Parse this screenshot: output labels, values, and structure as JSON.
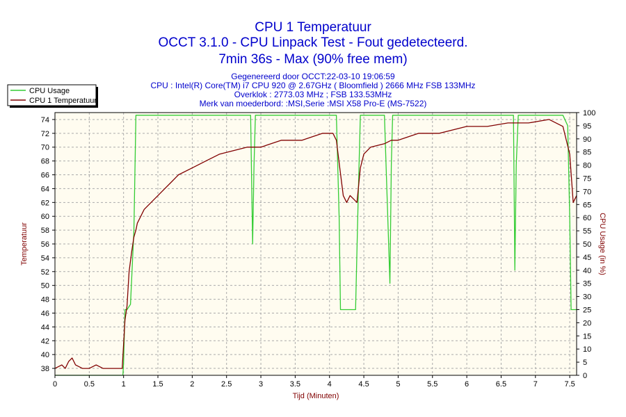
{
  "chart_data": {
    "type": "line",
    "title": [
      "CPU 1 Temperatuur",
      "OCCT 3.1.0 - CPU Linpack Test - Fout gedetecteerd.",
      "7min 36s - Max (90% free mem)"
    ],
    "subtitle": [
      "Gegenereerd door OCCT:22-03-10 19:06:59",
      "CPU : Intel(R) Core(TM) i7 CPU 920 @ 2.67GHz ( Bloomfield ) 2666 MHz FSB 133MHz",
      "Overklok : 2773.03 MHz ; FSB 133.53MHz",
      "Merk van moederbord: :MSI,Serie :MSI X58 Pro-E (MS-7522)"
    ],
    "xlabel": "Tijd (Minuten)",
    "ylabel_left": "Temperatuur",
    "ylabel_right": "CPU Usage (in %)",
    "xlim": [
      0,
      7.6
    ],
    "ylim_left": [
      37,
      75
    ],
    "ylim_right": [
      0,
      100
    ],
    "x_ticks": [
      "0",
      "0.5",
      "1",
      "1.5",
      "2",
      "2.5",
      "3",
      "3.5",
      "4",
      "4.5",
      "5",
      "5.5",
      "6",
      "6.5",
      "7",
      "7.5"
    ],
    "y_ticks_left": [
      "38",
      "40",
      "42",
      "44",
      "46",
      "48",
      "50",
      "52",
      "54",
      "56",
      "58",
      "60",
      "62",
      "64",
      "66",
      "68",
      "70",
      "72",
      "74"
    ],
    "y_ticks_right": [
      "0",
      "5",
      "10",
      "15",
      "20",
      "25",
      "30",
      "35",
      "40",
      "45",
      "50",
      "55",
      "60",
      "65",
      "70",
      "75",
      "80",
      "85",
      "90",
      "95",
      "100"
    ],
    "grid": true,
    "legend_position": "top-left",
    "series": [
      {
        "name": "CPU Usage",
        "axis": "right",
        "color": "#33cc33",
        "x": [
          0,
          0.99,
          1.0,
          1.02,
          1.05,
          1.1,
          1.15,
          1.18,
          1.5,
          2.0,
          2.5,
          2.85,
          2.88,
          2.9,
          2.92,
          2.95,
          3.5,
          4.0,
          4.1,
          4.14,
          4.16,
          4.2,
          4.3,
          4.38,
          4.42,
          4.45,
          4.5,
          4.8,
          4.88,
          4.9,
          4.92,
          4.95,
          5.5,
          6.0,
          6.5,
          6.68,
          6.7,
          6.72,
          6.75,
          7.0,
          7.4,
          7.47,
          7.5,
          7.52,
          7.6
        ],
        "y": [
          0,
          0,
          5,
          25,
          25,
          27,
          55,
          99,
          99,
          99,
          99,
          99,
          50,
          80,
          99,
          99,
          99,
          99,
          99,
          60,
          25,
          25,
          25,
          25,
          70,
          99,
          99,
          99,
          35,
          80,
          99,
          99,
          99,
          99,
          99,
          99,
          40,
          80,
          99,
          99,
          99,
          95,
          60,
          25,
          25
        ]
      },
      {
        "name": "CPU 1 Temperatuur",
        "axis": "left",
        "color": "#800000",
        "x": [
          0,
          0.1,
          0.15,
          0.2,
          0.25,
          0.3,
          0.4,
          0.5,
          0.6,
          0.7,
          0.8,
          0.9,
          0.98,
          1.02,
          1.05,
          1.08,
          1.12,
          1.15,
          1.18,
          1.2,
          1.25,
          1.3,
          1.4,
          1.5,
          1.6,
          1.7,
          1.8,
          2.0,
          2.2,
          2.4,
          2.6,
          2.8,
          3.0,
          3.3,
          3.6,
          3.9,
          4.05,
          4.1,
          4.15,
          4.2,
          4.25,
          4.3,
          4.35,
          4.4,
          4.45,
          4.5,
          4.6,
          4.8,
          4.9,
          5.0,
          5.3,
          5.6,
          6.0,
          6.3,
          6.6,
          6.9,
          7.2,
          7.4,
          7.5,
          7.55,
          7.6
        ],
        "y": [
          38,
          38.5,
          38,
          39,
          39.5,
          38.5,
          38,
          38,
          38.5,
          38,
          38,
          38,
          38,
          45,
          47,
          52,
          55,
          57,
          58,
          59,
          60,
          61,
          62,
          63,
          64,
          65,
          66,
          67,
          68,
          69,
          69.5,
          70,
          70,
          71,
          71,
          72,
          72,
          71,
          67,
          63,
          62,
          63,
          62.5,
          62,
          67,
          69,
          70,
          70.5,
          71,
          71,
          72,
          72,
          73,
          73,
          73.5,
          73.5,
          74,
          73,
          69,
          62,
          63
        ]
      }
    ]
  },
  "colors": {
    "plot_background": "#fffcf0",
    "title": "#0000cc",
    "left_axis_label": "#800000",
    "right_axis_label": "#800000",
    "grid": "#aaaaaa"
  }
}
